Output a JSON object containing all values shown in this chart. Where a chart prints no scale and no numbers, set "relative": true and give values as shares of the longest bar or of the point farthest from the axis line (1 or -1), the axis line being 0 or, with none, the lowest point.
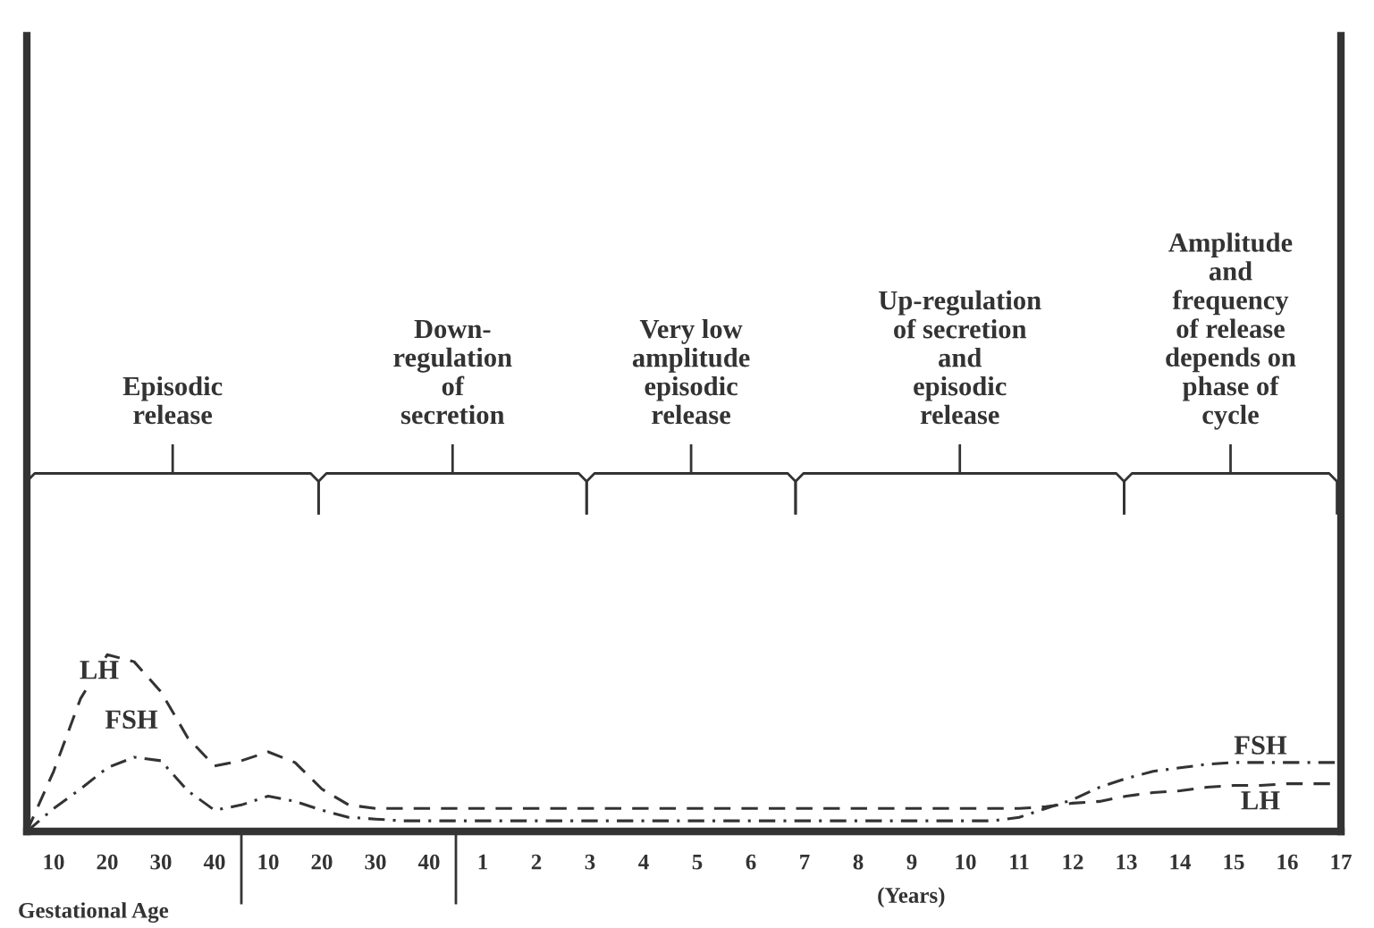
{
  "chart_data": {
    "type": "line",
    "relative": true,
    "xlabel": "(Years)",
    "categories": [
      null,
      "10",
      null,
      "20",
      null,
      "30",
      null,
      "40",
      null,
      "10",
      null,
      "20",
      null,
      "30",
      null,
      "40",
      null,
      "1",
      null,
      "2",
      null,
      "3",
      null,
      "4",
      null,
      "5",
      null,
      "6",
      null,
      "7",
      null,
      "8",
      null,
      "9",
      null,
      "10",
      null,
      "11",
      null,
      "12",
      null,
      "13",
      null,
      "14",
      null,
      "15",
      null,
      "16",
      null,
      "17"
    ],
    "tick_labels": "x",
    "series": [
      {
        "name": "LH",
        "color": "#333333",
        "line_style": "dashed",
        "values": [
          0,
          0.34,
          0.75,
          1.0,
          0.96,
          0.79,
          0.53,
          0.37,
          0.4,
          0.45,
          0.39,
          0.24,
          0.15,
          0.13,
          0.13,
          0.13,
          0.13,
          0.13,
          0.13,
          0.13,
          0.13,
          0.13,
          0.13,
          0.13,
          0.13,
          0.13,
          0.13,
          0.13,
          0.13,
          0.13,
          0.13,
          0.13,
          0.13,
          0.13,
          0.13,
          0.13,
          0.13,
          0.13,
          0.14,
          0.16,
          0.17,
          0.2,
          0.22,
          0.23,
          0.25,
          0.26,
          0.26,
          0.27,
          0.27,
          0.27
        ]
      },
      {
        "name": "FSH",
        "color": "#333333",
        "line_style": "dashdot",
        "values": [
          0,
          0.13,
          0.24,
          0.36,
          0.42,
          0.4,
          0.23,
          0.12,
          0.15,
          0.2,
          0.17,
          0.12,
          0.08,
          0.07,
          0.06,
          0.06,
          0.06,
          0.06,
          0.06,
          0.06,
          0.06,
          0.06,
          0.06,
          0.06,
          0.06,
          0.06,
          0.06,
          0.06,
          0.06,
          0.06,
          0.06,
          0.06,
          0.06,
          0.06,
          0.06,
          0.06,
          0.06,
          0.08,
          0.13,
          0.18,
          0.25,
          0.3,
          0.34,
          0.36,
          0.38,
          0.39,
          0.39,
          0.39,
          0.39,
          0.39
        ]
      }
    ],
    "annotations": [
      "Episodic\nrelease",
      "Down-\nregulation\nof\nsecretion",
      "Very low\namplitude\nepisodic\nrelease",
      "Up-regulation\nof secretion\nand\nepisodic\nrelease",
      "Amplitude\nand\nfrequency\nof release\ndepends on\nphase of\ncycle",
      "LH",
      "FSH",
      "Gestational Age"
    ]
  }
}
